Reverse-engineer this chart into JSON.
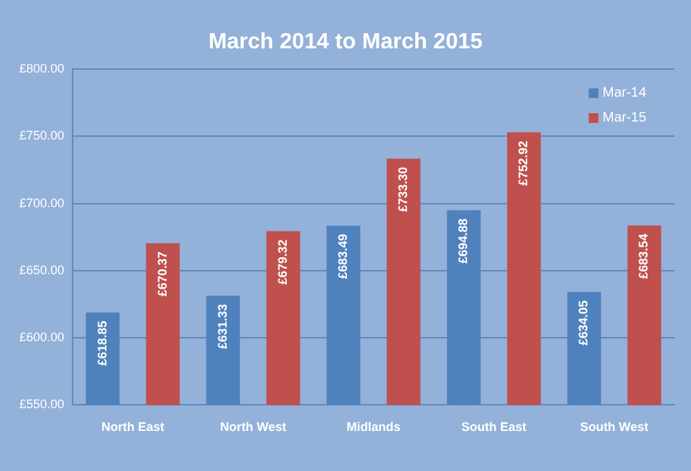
{
  "chart_data": {
    "type": "bar",
    "title": "March 2014 to March 2015",
    "categories": [
      "North East",
      "North West",
      "Midlands",
      "South East",
      "South West"
    ],
    "series": [
      {
        "name": "Mar-14",
        "color": "#4f81bd",
        "values": [
          618.85,
          631.33,
          683.49,
          694.88,
          634.05
        ],
        "value_labels": [
          "£618.85",
          "£631.33",
          "£683.49",
          "£694.88",
          "£634.05"
        ]
      },
      {
        "name": "Mar-15",
        "color": "#c0504d",
        "values": [
          670.37,
          679.32,
          733.3,
          752.92,
          683.54
        ],
        "value_labels": [
          "£670.37",
          "£679.32",
          "£733.30",
          "£752.92",
          "£683.54"
        ]
      }
    ],
    "ylim": [
      550,
      800
    ],
    "yticks": [
      {
        "value": 550,
        "label": "£550.00"
      },
      {
        "value": 600,
        "label": "£600.00"
      },
      {
        "value": 650,
        "label": "£650.00"
      },
      {
        "value": 700,
        "label": "£700.00"
      },
      {
        "value": 750,
        "label": "£750.00"
      },
      {
        "value": 800,
        "label": "£800.00"
      }
    ],
    "grid": "y",
    "legend": "top right"
  }
}
